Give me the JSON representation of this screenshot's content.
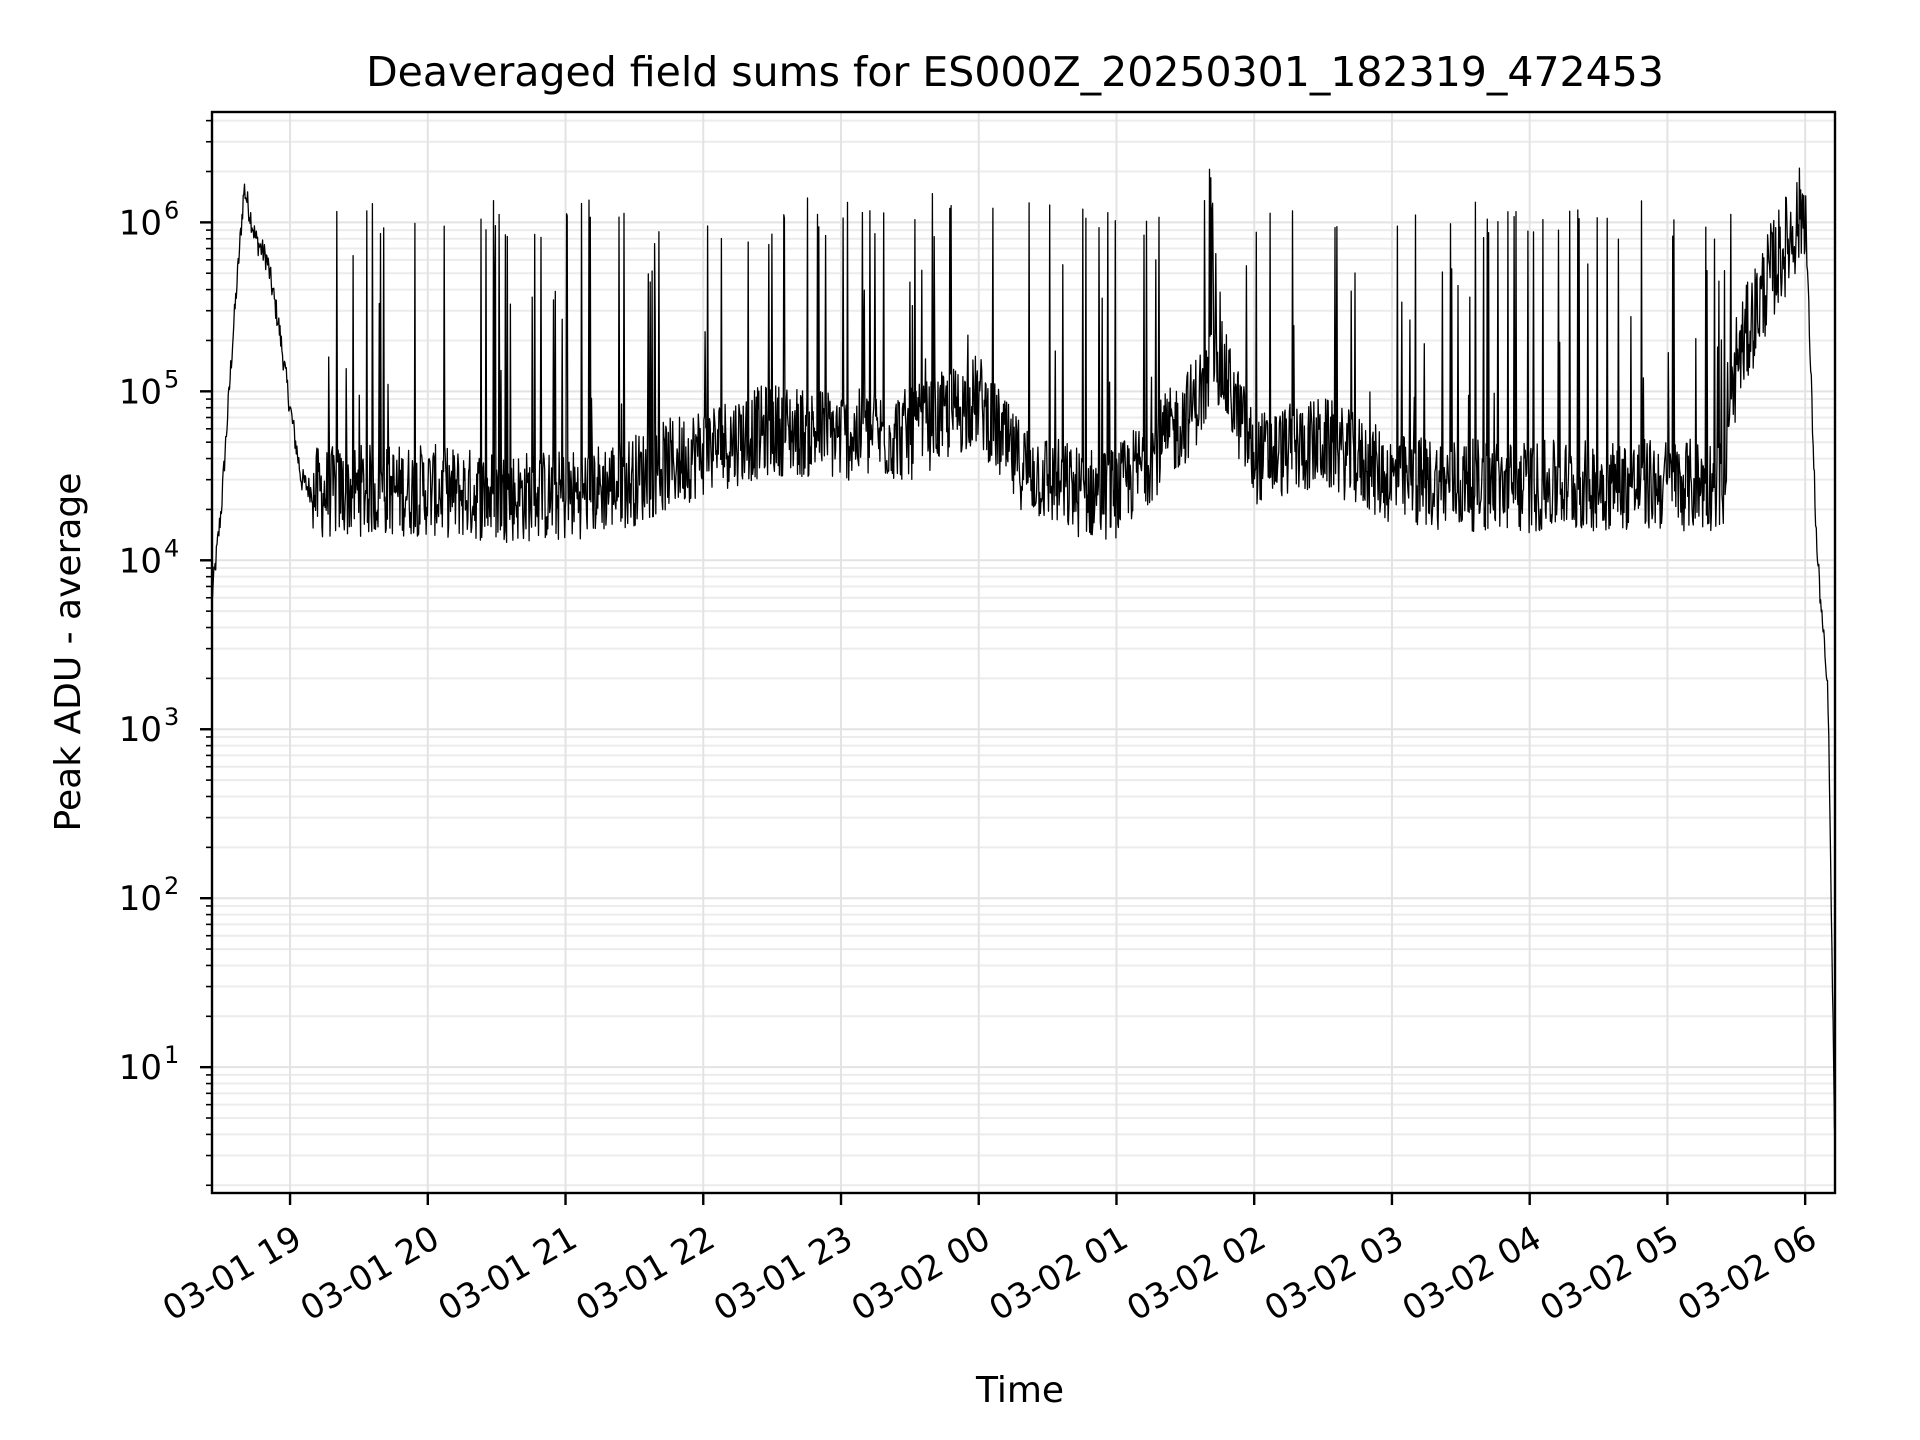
{
  "chart_data": {
    "type": "line",
    "title": "Deaveraged field sums for ES000Z_20250301_182319_472453",
    "xlabel": "Time",
    "ylabel": "Peak ADU - average",
    "yscale": "log",
    "ylim": [
      1.8,
      4500000
    ],
    "xlim": [
      "2025-03-01 18:26",
      "2025-03-02 06:13"
    ],
    "grid": "major and minor",
    "x_ticks": [
      "03-01 19",
      "03-01 20",
      "03-01 21",
      "03-01 22",
      "03-01 23",
      "03-02 00",
      "03-02 01",
      "03-02 02",
      "03-02 03",
      "03-02 04",
      "03-02 05",
      "03-02 06"
    ],
    "y_ticks": [
      {
        "base": "10",
        "exp": "1"
      },
      {
        "base": "10",
        "exp": "2"
      },
      {
        "base": "10",
        "exp": "3"
      },
      {
        "base": "10",
        "exp": "4"
      },
      {
        "base": "10",
        "exp": "5"
      },
      {
        "base": "10",
        "exp": "6"
      }
    ],
    "series_color": "#000000",
    "series": [
      {
        "x": [
          "2025-03-01 18:26",
          "2025-03-01 18:30",
          "2025-03-01 18:35",
          "2025-03-01 18:40",
          "2025-03-01 18:45",
          "2025-03-01 18:50",
          "2025-03-01 18:55",
          "2025-03-01 19:00",
          "2025-03-01 19:05",
          "2025-03-01 19:10",
          "2025-03-01 19:15",
          "2025-03-01 19:30",
          "2025-03-01 20:00",
          "2025-03-01 20:30",
          "2025-03-01 21:00",
          "2025-03-01 21:30",
          "2025-03-01 22:00",
          "2025-03-01 22:30",
          "2025-03-01 23:00",
          "2025-03-01 23:30",
          "2025-03-02 00:00",
          "2025-03-02 00:15",
          "2025-03-02 00:30",
          "2025-03-02 00:45",
          "2025-03-02 01:00",
          "2025-03-02 01:30",
          "2025-03-02 01:45",
          "2025-03-02 02:00",
          "2025-03-02 02:30",
          "2025-03-02 03:00",
          "2025-03-02 03:30",
          "2025-03-02 04:00",
          "2025-03-02 04:30",
          "2025-03-02 05:00",
          "2025-03-02 05:25",
          "2025-03-02 05:30",
          "2025-03-02 05:45",
          "2025-03-02 05:55",
          "2025-03-02 06:00",
          "2025-03-02 06:05",
          "2025-03-02 06:10",
          "2025-03-02 06:13"
        ],
        "values": [
          6000,
          20000,
          200000,
          1600000,
          800000,
          600000,
          250000,
          80000,
          30000,
          25000,
          25000,
          26000,
          26000,
          24000,
          24000,
          30000,
          45000,
          60000,
          55000,
          55000,
          90000,
          40000,
          30000,
          25000,
          25000,
          70000,
          150000,
          40000,
          50000,
          30000,
          28000,
          27000,
          28000,
          28000,
          28000,
          150000,
          500000,
          900000,
          1300000,
          12000,
          1500,
          3
        ]
      }
    ]
  }
}
